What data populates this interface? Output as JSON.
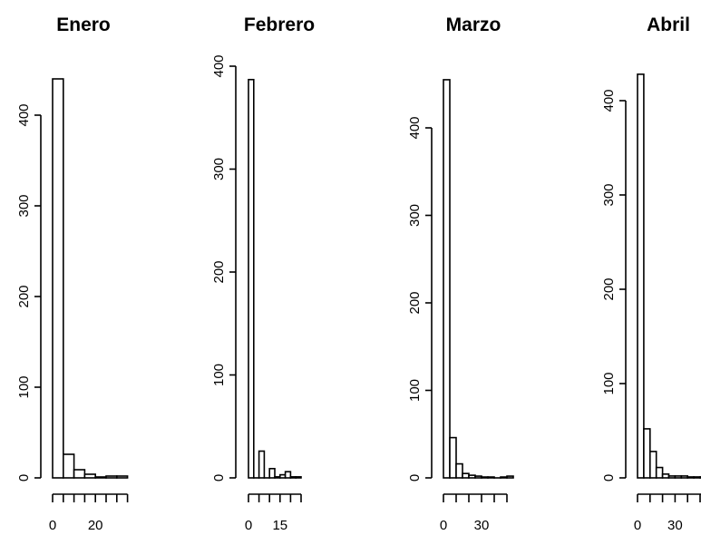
{
  "chart_data": [
    {
      "type": "bar",
      "title": "Enero",
      "xlabel": "",
      "ylabel": "",
      "bin_width": 5,
      "bins": [
        [
          0,
          5
        ],
        [
          5,
          10
        ],
        [
          10,
          15
        ],
        [
          15,
          20
        ],
        [
          20,
          25
        ],
        [
          25,
          30
        ],
        [
          30,
          35
        ]
      ],
      "values": [
        440,
        26,
        9,
        4,
        1,
        2,
        2
      ],
      "ylim": [
        0,
        440
      ],
      "y_ticks": [
        0,
        100,
        200,
        300,
        400
      ],
      "x_axis_ticks": [
        0,
        5,
        10,
        15,
        20,
        25,
        30,
        35
      ],
      "x_tick_labels": [
        {
          "value": 0,
          "label": "0"
        },
        {
          "value": 20,
          "label": "20"
        }
      ],
      "grid": false,
      "legend": "none"
    },
    {
      "type": "bar",
      "title": "Febrero",
      "xlabel": "",
      "ylabel": "",
      "bin_width": 2.5,
      "bins": [
        [
          0,
          2.5
        ],
        [
          2.5,
          5
        ],
        [
          5,
          7.5
        ],
        [
          7.5,
          10
        ],
        [
          10,
          12.5
        ],
        [
          12.5,
          15
        ],
        [
          15,
          17.5
        ],
        [
          17.5,
          20
        ],
        [
          20,
          22.5
        ],
        [
          22.5,
          25
        ]
      ],
      "values": [
        387,
        0,
        26,
        0,
        9,
        1,
        3,
        6,
        1,
        1
      ],
      "ylim": [
        0,
        400
      ],
      "y_ticks": [
        0,
        100,
        200,
        300,
        400
      ],
      "x_axis_ticks": [
        0,
        5,
        10,
        15,
        20,
        25
      ],
      "x_tick_labels": [
        {
          "value": 0,
          "label": "0"
        },
        {
          "value": 15,
          "label": "15"
        }
      ],
      "grid": false,
      "legend": "none"
    },
    {
      "type": "bar",
      "title": "Marzo",
      "xlabel": "",
      "ylabel": "",
      "bin_width": 5,
      "bins": [
        [
          0,
          5
        ],
        [
          5,
          10
        ],
        [
          10,
          15
        ],
        [
          15,
          20
        ],
        [
          20,
          25
        ],
        [
          25,
          30
        ],
        [
          30,
          35
        ],
        [
          35,
          40
        ],
        [
          40,
          45
        ],
        [
          45,
          50
        ],
        [
          50,
          55
        ]
      ],
      "values": [
        455,
        46,
        16,
        5,
        3,
        2,
        1,
        1,
        0,
        1,
        2
      ],
      "ylim": [
        0,
        460
      ],
      "y_ticks": [
        0,
        100,
        200,
        300,
        400
      ],
      "x_axis_ticks": [
        0,
        10,
        20,
        30,
        40,
        50
      ],
      "x_tick_labels": [
        {
          "value": 0,
          "label": "0"
        },
        {
          "value": 30,
          "label": "30"
        }
      ],
      "grid": false,
      "legend": "none"
    },
    {
      "type": "bar",
      "title": "Abril",
      "xlabel": "",
      "ylabel": "",
      "bin_width": 5,
      "bins": [
        [
          0,
          5
        ],
        [
          5,
          10
        ],
        [
          10,
          15
        ],
        [
          15,
          20
        ],
        [
          20,
          25
        ],
        [
          25,
          30
        ],
        [
          30,
          35
        ],
        [
          35,
          40
        ],
        [
          40,
          45
        ],
        [
          45,
          50
        ],
        [
          50,
          55
        ],
        [
          55,
          60
        ],
        [
          60,
          65
        ]
      ],
      "values": [
        428,
        52,
        28,
        11,
        4,
        2,
        2,
        2,
        1,
        1,
        1,
        2,
        2
      ],
      "ylim": [
        0,
        430
      ],
      "y_ticks": [
        0,
        100,
        200,
        300,
        400
      ],
      "x_axis_ticks": [
        0,
        10,
        20,
        30,
        40,
        50,
        60
      ],
      "x_tick_labels": [
        {
          "value": 0,
          "label": "0"
        },
        {
          "value": 30,
          "label": "30"
        }
      ],
      "grid": false,
      "legend": "none"
    }
  ]
}
